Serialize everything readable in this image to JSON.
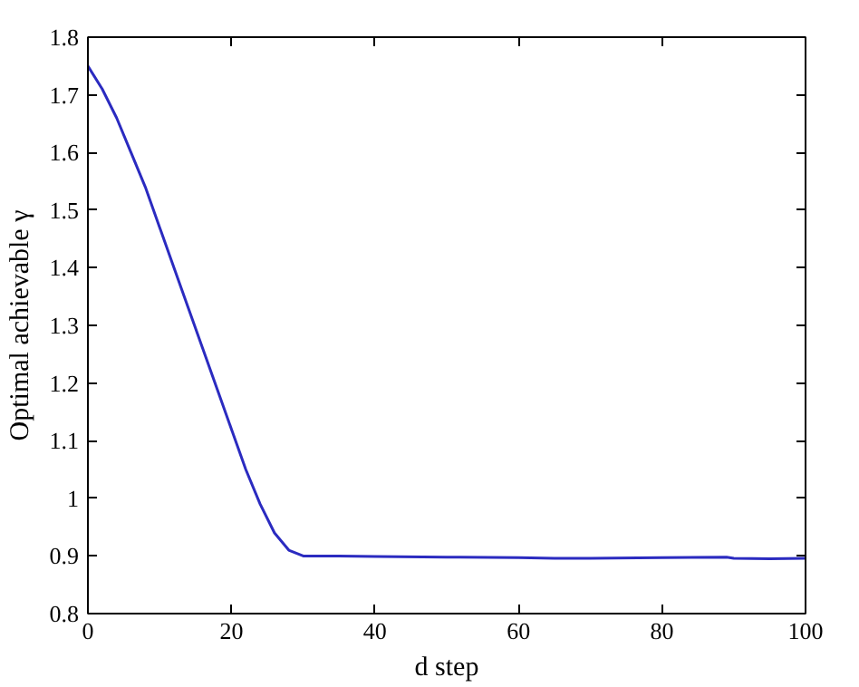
{
  "chart_data": {
    "type": "line",
    "xlabel": "d step",
    "ylabel": "Optimal achievable γ",
    "x": [
      0,
      2,
      4,
      6,
      8,
      10,
      12,
      14,
      16,
      18,
      20,
      22,
      24,
      26,
      28,
      30,
      35,
      40,
      50,
      60,
      65,
      70,
      80,
      89,
      90,
      95,
      100
    ],
    "series": [
      {
        "color": "#2b2bc0",
        "values": [
          1.75,
          1.71,
          1.66,
          1.6,
          1.54,
          1.47,
          1.4,
          1.33,
          1.26,
          1.19,
          1.12,
          1.05,
          0.99,
          0.94,
          0.91,
          0.9,
          0.9,
          0.899,
          0.898,
          0.897,
          0.896,
          0.896,
          0.897,
          0.898,
          0.896,
          0.895,
          0.896
        ]
      }
    ],
    "xlim": [
      0,
      100
    ],
    "ylim": [
      0.8,
      1.8
    ],
    "xticks": [
      0,
      20,
      40,
      60,
      80,
      100
    ],
    "yticks": [
      0.8,
      0.9,
      1,
      1.1,
      1.2,
      1.3,
      1.4,
      1.5,
      1.6,
      1.7,
      1.8
    ],
    "grid": false,
    "marker": "none",
    "line_style": "solid"
  }
}
